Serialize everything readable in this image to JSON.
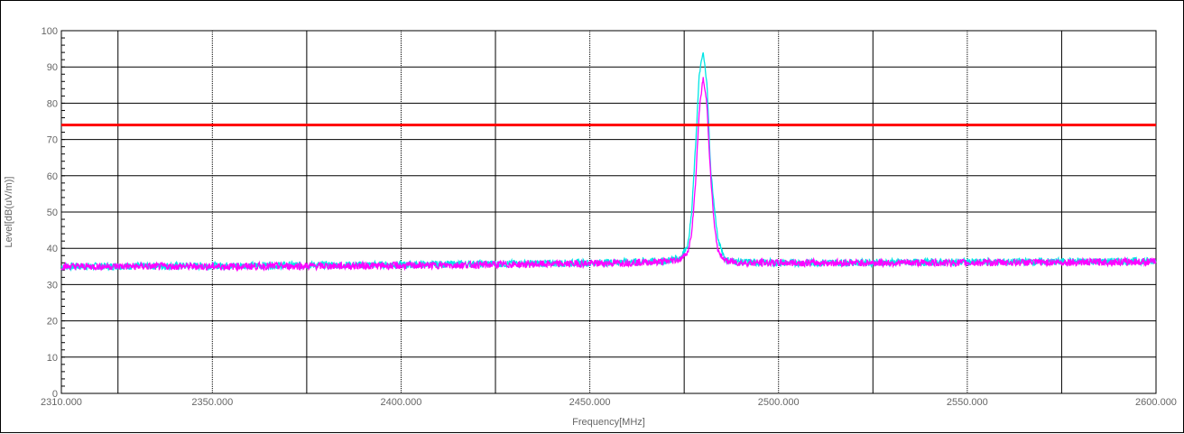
{
  "chart_data": {
    "type": "line",
    "title": "",
    "xlabel": "Frequency[MHz]",
    "ylabel": "Level[dB(uV/m)]",
    "xlim": [
      2310.0,
      2600.0
    ],
    "ylim": [
      0,
      100
    ],
    "x_ticks": [
      2310.0,
      2350.0,
      2400.0,
      2450.0,
      2500.0,
      2550.0,
      2600.0
    ],
    "x_tick_labels": [
      "2310.000",
      "2350.000",
      "2400.000",
      "2450.000",
      "2500.000",
      "2550.000",
      "2600.000"
    ],
    "y_ticks": [
      0,
      10,
      20,
      30,
      40,
      50,
      60,
      70,
      80,
      90,
      100
    ],
    "y_tick_labels": [
      "0",
      "10",
      "20",
      "30",
      "40",
      "50",
      "60",
      "70",
      "80",
      "90",
      "100"
    ],
    "grid": true,
    "limit_line": {
      "value": 74,
      "color": "#ff0000"
    },
    "series": [
      {
        "color": "#00e5e5",
        "x": [
          2310,
          2350,
          2400,
          2450,
          2470,
          2474,
          2476,
          2477,
          2478,
          2479,
          2480,
          2481,
          2482,
          2483,
          2484,
          2486,
          2490,
          2500,
          2550,
          2600
        ],
        "y": [
          35.0,
          35.2,
          35.5,
          36.0,
          36.5,
          37.5,
          41,
          50,
          68,
          88,
          94,
          86,
          62,
          51,
          42,
          36.8,
          36.2,
          36.0,
          36.2,
          36.5
        ]
      },
      {
        "color": "#ff00ff",
        "x": [
          2310,
          2350,
          2400,
          2450,
          2470,
          2474,
          2476,
          2477,
          2478,
          2479,
          2480,
          2481,
          2482,
          2483,
          2484,
          2486,
          2490,
          2500,
          2550,
          2600
        ],
        "y": [
          35.0,
          35.0,
          35.2,
          35.8,
          36.3,
          37.0,
          39,
          44,
          58,
          78,
          87,
          80,
          60,
          46,
          39,
          36.5,
          36.0,
          36.0,
          36.0,
          36.3
        ]
      }
    ]
  }
}
